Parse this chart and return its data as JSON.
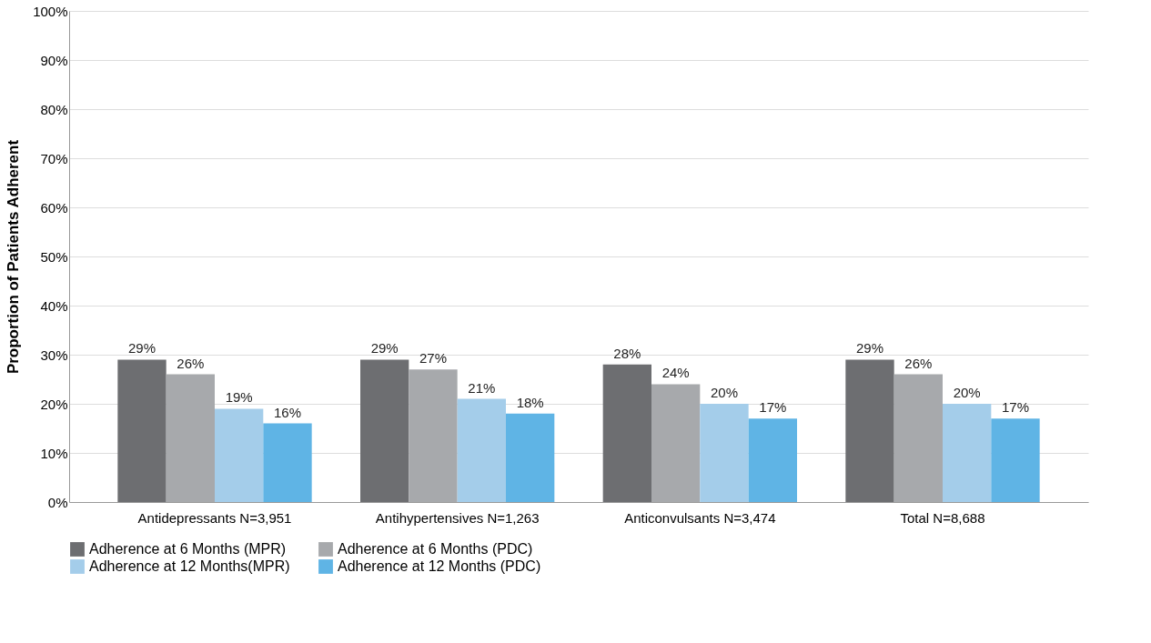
{
  "chart_data": {
    "type": "bar",
    "ylabel": "Proportion of Patients Adherent",
    "categories": [
      "Antidepressants N=3,951",
      "Antihypertensives N=1,263",
      "Anticonvulsants N=3,474",
      "Total N=8,688"
    ],
    "series": [
      {
        "name": "Adherence at 6 Months (MPR)",
        "color": "#6d6e71",
        "values": [
          29,
          29,
          28,
          29
        ],
        "value_labels": [
          "29%",
          "29%",
          "28%",
          "29%"
        ]
      },
      {
        "name": "Adherence at 6 Months (PDC)",
        "color": "#a7a9ac",
        "values": [
          26,
          27,
          24,
          26
        ],
        "value_labels": [
          "26%",
          "27%",
          "24%",
          "26%"
        ]
      },
      {
        "name": "Adherence at 12 Months(MPR)",
        "color": "#a4cdea",
        "values": [
          19,
          21,
          20,
          20
        ],
        "value_labels": [
          "19%",
          "21%",
          "20%",
          "20%"
        ]
      },
      {
        "name": "Adherence at 12 Months (PDC)",
        "color": "#5fb4e5",
        "values": [
          16,
          18,
          17,
          17
        ],
        "value_labels": [
          "16%",
          "18%",
          "17%",
          "17%"
        ]
      }
    ],
    "ylim": [
      0,
      100
    ],
    "yticks": [
      {
        "value": 0,
        "label": "0%"
      },
      {
        "value": 10,
        "label": "10%"
      },
      {
        "value": 20,
        "label": "20%"
      },
      {
        "value": 30,
        "label": "30%"
      },
      {
        "value": 40,
        "label": "40%"
      },
      {
        "value": 50,
        "label": "50%"
      },
      {
        "value": 60,
        "label": "60%"
      },
      {
        "value": 70,
        "label": "70%"
      },
      {
        "value": 80,
        "label": "80%"
      },
      {
        "value": 90,
        "label": "90%"
      },
      {
        "value": 100,
        "label": "100%"
      }
    ],
    "grid": "y",
    "legend": "bottom"
  }
}
